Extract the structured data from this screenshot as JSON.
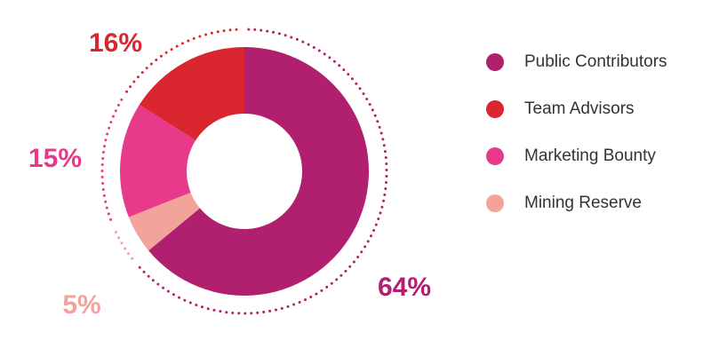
{
  "chart_data": {
    "type": "donut",
    "categories": [
      "Public Contributors",
      "Team Advisors",
      "Marketing Bounty",
      "Mining Reserve"
    ],
    "values": [
      64,
      16,
      15,
      5
    ],
    "value_labels": [
      "64%",
      "16%",
      "15%",
      "5%"
    ],
    "colors": [
      "#b0206e",
      "#d9262f",
      "#e83a8a",
      "#f2a49a"
    ]
  }
}
